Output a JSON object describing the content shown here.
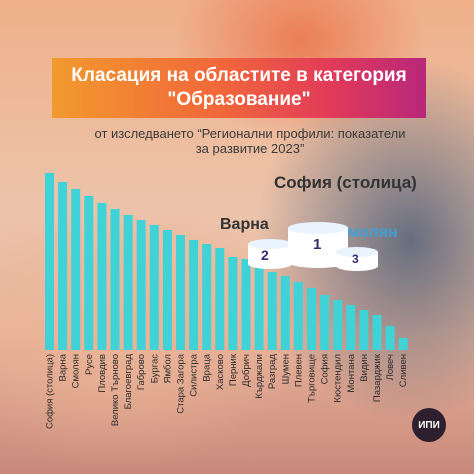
{
  "title": {
    "line1": "Класация на областите в категория",
    "line2": "\"Образование\""
  },
  "subtitle": "от изследването “Регионални профили: показатели за развитие 2023”",
  "podium": {
    "first": {
      "label": "София (столица)",
      "rank": "1"
    },
    "second": {
      "label": "Варна",
      "rank": "2"
    },
    "third": {
      "label": "Смолян",
      "rank": "3"
    }
  },
  "logo": "ИПИ",
  "colors": {
    "bar": "#3fd3d8",
    "title_gradient": [
      "#f29a2e",
      "#e13a5a",
      "#b8277a"
    ],
    "smolyan_label": "#3fa0d6"
  },
  "chart_data": {
    "type": "bar",
    "categories": [
      "София (столица)",
      "Варна",
      "Смолян",
      "Русе",
      "Пловдив",
      "Велико Търново",
      "Благоевград",
      "Габрово",
      "Бургас",
      "Ямбол",
      "Стара Загора",
      "Силистра",
      "Враца",
      "Хасково",
      "Перник",
      "Добрич",
      "Кърджали",
      "Разград",
      "Шумен",
      "Плевен",
      "Търговище",
      "София",
      "Кюстендил",
      "Монтана",
      "Видин",
      "Пазарджик",
      "Ловеч",
      "Сливен"
    ],
    "values": [
      177,
      168,
      161,
      154,
      147,
      141,
      135,
      130,
      125,
      120,
      115,
      110,
      106,
      102,
      93,
      91,
      84,
      78,
      74,
      68,
      62,
      55,
      50,
      45,
      40,
      35,
      24,
      12
    ],
    "xlabel": "",
    "ylabel": "",
    "grid": false
  }
}
